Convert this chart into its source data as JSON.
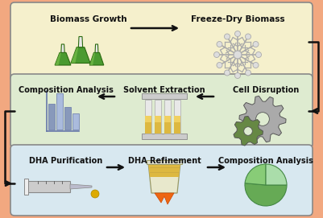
{
  "bg_color": "#f2a880",
  "box1_color": "#f5f0cc",
  "box2_color": "#deebd0",
  "box3_color": "#d8e8f0",
  "box_edge_color": "#888888",
  "arrow_color": "#111111",
  "text_color": "#111111",
  "row1_labels": [
    "Biomass Growth",
    "Freeze-Dry Biomass"
  ],
  "row2_labels": [
    "Composition Analysis",
    "Solvent Extraction",
    "Cell Disruption"
  ],
  "row3_labels": [
    "DHA Purification",
    "DHA Refinement",
    "Composition Analysis"
  ],
  "flask_green": "#4a9a30",
  "flask_green_dark": "#2a6a10",
  "flask_glass": "#e8e8e8",
  "flask_glass_dark": "#999999",
  "bar_blue": "#8899bb",
  "bar_blue2": "#aabbdd",
  "tube_yellow": "#ddb840",
  "tube_light": "#f0d060",
  "gear_gray": "#999999",
  "gear_dark": "#777777",
  "gear_green": "#668844",
  "syringe_gray": "#cccccc",
  "drop_yellow": "#ddaa00",
  "beaker_yellow": "#ddb840",
  "flame_orange": "#ee6611",
  "pie_green1": "#66aa55",
  "pie_green2": "#88cc77",
  "pie_green3": "#aaddaa",
  "snow_gray": "#aaaaaa",
  "snow_light": "#dddddd"
}
